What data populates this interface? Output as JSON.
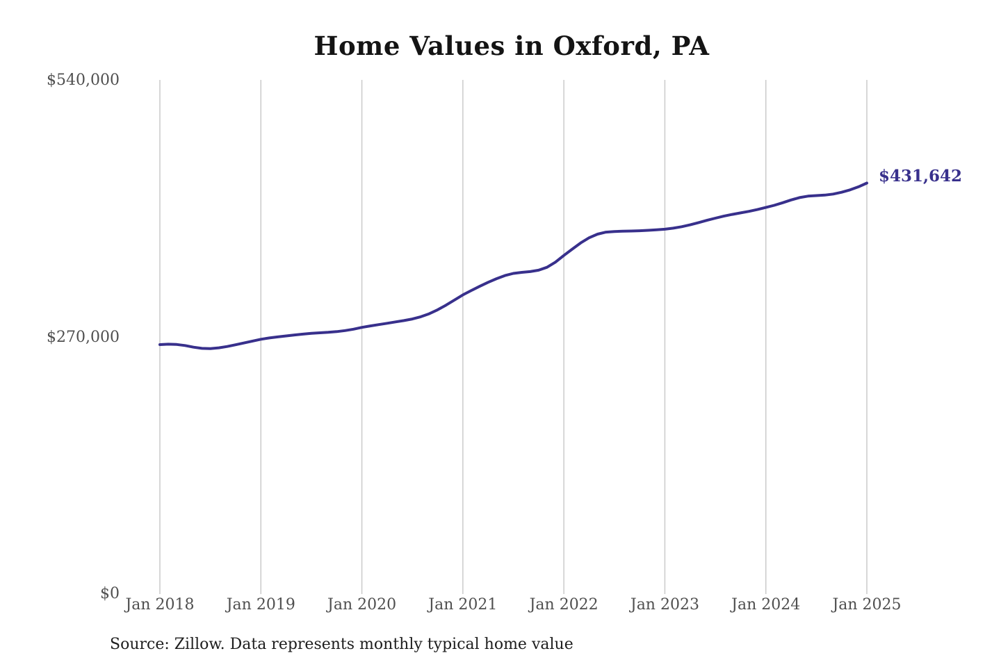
{
  "title": "Home Values in Oxford, PA",
  "source_note": "Source: Zillow. Data represents monthly typical home value",
  "colors": {
    "line": "#38308c",
    "grid": "#cacaca",
    "title_text": "#141414",
    "axis_text": "#4f4f4f",
    "source_text": "#1d1d1d"
  },
  "chart_data": {
    "type": "line",
    "title": "Home Values in Oxford, PA",
    "xlabel": "",
    "ylabel": "",
    "ylim": [
      0,
      540000
    ],
    "y_tick_labels": [
      "$0",
      "$270,000",
      "$540,000"
    ],
    "y_tick_values": [
      0,
      270000,
      540000
    ],
    "x_tick_labels": [
      "Jan 2018",
      "Jan 2019",
      "Jan 2020",
      "Jan 2021",
      "Jan 2022",
      "Jan 2023",
      "Jan 2024",
      "Jan 2025"
    ],
    "grid": "vertical-only",
    "legend": "none",
    "annotation": {
      "text": "$431,642",
      "value": 431642,
      "position": "end-of-line"
    },
    "series": [
      {
        "name": "Monthly typical home value",
        "frequency": "monthly",
        "x_start": "2018-01",
        "x_end": "2025-01",
        "values": [
          262000,
          262400,
          262100,
          261000,
          259300,
          258000,
          257800,
          258600,
          260000,
          261800,
          263700,
          265700,
          267600,
          269000,
          270100,
          271100,
          272100,
          273000,
          273800,
          274400,
          274900,
          275600,
          276700,
          278200,
          280100,
          281600,
          283000,
          284400,
          285800,
          287200,
          288900,
          291200,
          294400,
          298500,
          303400,
          308800,
          314200,
          318800,
          323200,
          327400,
          331200,
          334500,
          336800,
          337900,
          338700,
          340100,
          343200,
          348600,
          355600,
          362300,
          368800,
          374200,
          378000,
          380100,
          380800,
          381100,
          381300,
          381600,
          382000,
          382500,
          383200,
          384300,
          385800,
          387800,
          390100,
          392500,
          394800,
          396900,
          398700,
          400300,
          401900,
          403800,
          406000,
          408300,
          411000,
          413900,
          416400,
          417900,
          418500,
          419000,
          420100,
          422000,
          424500,
          427700,
          431642
        ]
      }
    ]
  }
}
